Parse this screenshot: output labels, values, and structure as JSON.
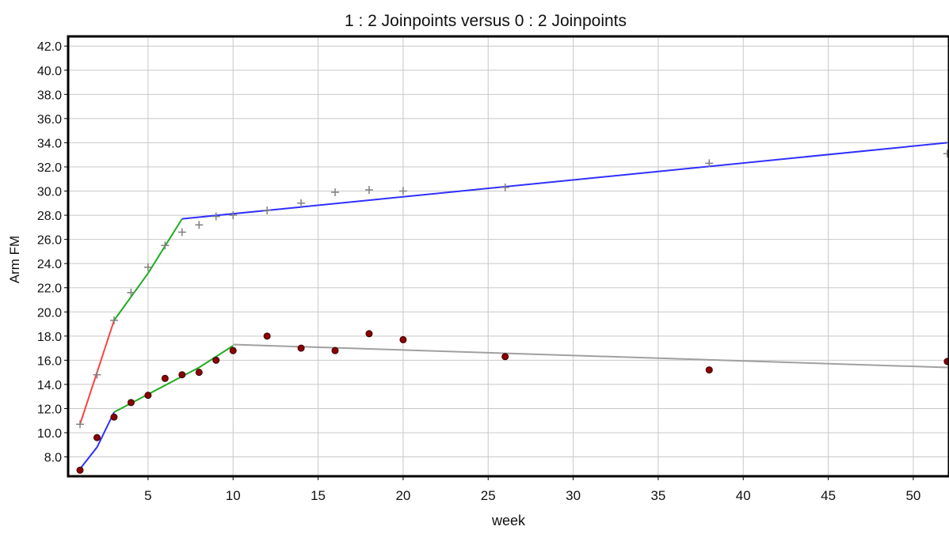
{
  "chart_data": {
    "type": "scatter",
    "title": "1 : 2 Joinpoints  versus  0 : 2 Joinpoints",
    "xlabel": "week",
    "ylabel": "Arm FM",
    "xlim": [
      0.3,
      52.1
    ],
    "ylim": [
      6.4,
      42.8
    ],
    "x_ticks": [
      5,
      10,
      15,
      20,
      25,
      30,
      35,
      40,
      45,
      50
    ],
    "y_ticks": [
      8.0,
      10.0,
      12.0,
      14.0,
      16.0,
      18.0,
      20.0,
      22.0,
      24.0,
      26.0,
      28.0,
      30.0,
      32.0,
      34.0,
      36.0,
      38.0,
      40.0,
      42.0
    ],
    "grid": true,
    "legend": "none",
    "series": [
      {
        "marker": "plus",
        "color": "#808080",
        "points": [
          [
            1,
            10.7
          ],
          [
            2,
            14.8
          ],
          [
            3,
            19.3
          ],
          [
            4,
            21.6
          ],
          [
            5,
            23.7
          ],
          [
            6,
            25.5
          ],
          [
            7,
            26.6
          ],
          [
            8,
            27.2
          ],
          [
            9,
            27.9
          ],
          [
            10,
            28.0
          ],
          [
            12,
            28.4
          ],
          [
            14,
            29.0
          ],
          [
            16,
            29.9
          ],
          [
            18,
            30.1
          ],
          [
            20,
            30.0
          ],
          [
            26,
            30.3
          ],
          [
            38,
            32.3
          ],
          [
            52,
            33.1
          ]
        ]
      },
      {
        "marker": "dot",
        "color": "#8b0000",
        "points": [
          [
            1,
            6.9
          ],
          [
            2,
            9.6
          ],
          [
            3,
            11.3
          ],
          [
            4,
            12.5
          ],
          [
            5,
            13.1
          ],
          [
            6,
            14.5
          ],
          [
            7,
            14.8
          ],
          [
            8,
            15.0
          ],
          [
            9,
            16.0
          ],
          [
            10,
            16.8
          ],
          [
            12,
            18.0
          ],
          [
            14,
            17.0
          ],
          [
            16,
            16.8
          ],
          [
            18,
            18.2
          ],
          [
            20,
            17.7
          ],
          [
            26,
            16.3
          ],
          [
            38,
            15.2
          ],
          [
            52,
            15.9
          ]
        ]
      }
    ],
    "fit_segments": [
      {
        "color": "#ff4040",
        "points": [
          [
            1,
            10.7
          ],
          [
            3,
            19.3
          ]
        ]
      },
      {
        "color": "#22aa22",
        "points": [
          [
            3,
            19.3
          ],
          [
            5,
            23.2
          ],
          [
            7,
            27.7
          ]
        ]
      },
      {
        "color": "#3030ff",
        "points": [
          [
            7,
            27.7
          ],
          [
            52,
            34.0
          ]
        ]
      },
      {
        "color": "#3030ff",
        "points": [
          [
            1,
            7.0
          ],
          [
            2,
            8.8
          ],
          [
            3,
            11.7
          ]
        ]
      },
      {
        "color": "#22aa22",
        "points": [
          [
            3,
            11.7
          ],
          [
            8,
            15.4
          ],
          [
            10,
            17.2
          ]
        ]
      },
      {
        "color": "#a0a0a0",
        "points": [
          [
            10,
            17.3
          ],
          [
            52,
            15.4
          ]
        ]
      }
    ]
  }
}
